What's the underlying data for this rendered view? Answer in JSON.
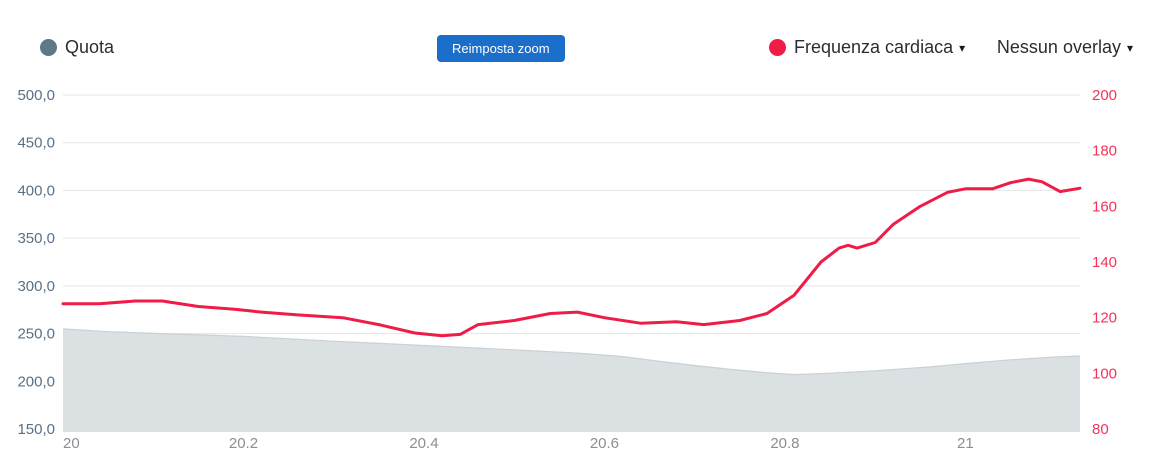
{
  "header": {
    "quota_legend": {
      "label": "Quota",
      "dot_color": "#5f7887"
    },
    "reset_zoom_button": {
      "label": "Reimposta zoom",
      "bg": "#1b6ec9",
      "text_color": "#ffffff"
    },
    "hr_dropdown": {
      "label": "Frequenza cardiaca",
      "dot_color": "#ee1c46",
      "arrow": "▾"
    },
    "overlay_dropdown": {
      "label": "Nessun overlay",
      "arrow": "▾"
    }
  },
  "chart_data": {
    "type": "area",
    "title": "",
    "x_axis": {
      "tick_labels": [
        "20",
        "20.2",
        "20.4",
        "20.6",
        "20.8",
        "21"
      ],
      "tick_values": [
        20,
        20.2,
        20.4,
        20.6,
        20.8,
        21
      ],
      "range": [
        20,
        21.127
      ],
      "color": "#8a8f94"
    },
    "left_axis": {
      "name": "Quota",
      "tick_labels": [
        "500,0",
        "450,0",
        "400,0",
        "350,0",
        "300,0",
        "250,0",
        "200,0",
        "150,0"
      ],
      "tick_values": [
        500,
        450,
        400,
        350,
        300,
        250,
        200,
        150
      ],
      "range": [
        150,
        500
      ],
      "color": "#5a7084"
    },
    "right_axis": {
      "name": "Frequenza cardiaca",
      "tick_labels": [
        "200",
        "180",
        "160",
        "140",
        "120",
        "100",
        "80"
      ],
      "tick_values": [
        200,
        180,
        160,
        140,
        120,
        100,
        80
      ],
      "range": [
        80,
        200
      ],
      "color": "#f4335a"
    },
    "grid": {
      "color": "#e3e4e6",
      "on": true
    },
    "series": [
      {
        "name": "Quota",
        "type": "area",
        "axis": "left",
        "fill": "#dbe0e3",
        "stroke": "#c9d1d6",
        "points": [
          [
            20.0,
            255
          ],
          [
            20.05,
            252
          ],
          [
            20.11,
            250
          ],
          [
            20.2,
            247
          ],
          [
            20.3,
            242
          ],
          [
            20.4,
            237.5
          ],
          [
            20.5,
            233
          ],
          [
            20.57,
            229.5
          ],
          [
            20.62,
            226
          ],
          [
            20.66,
            221
          ],
          [
            20.7,
            216.5
          ],
          [
            20.74,
            212.5
          ],
          [
            20.78,
            209
          ],
          [
            20.81,
            207
          ],
          [
            20.85,
            208.5
          ],
          [
            20.9,
            211
          ],
          [
            20.96,
            215
          ],
          [
            21.0,
            218.5
          ],
          [
            21.05,
            222.5
          ],
          [
            21.1,
            225.5
          ],
          [
            21.127,
            226.5
          ]
        ]
      },
      {
        "name": "Frequenza cardiaca",
        "type": "line",
        "axis": "right",
        "stroke": "#ee1c46",
        "points": [
          [
            20.0,
            125
          ],
          [
            20.04,
            125
          ],
          [
            20.08,
            126
          ],
          [
            20.11,
            126
          ],
          [
            20.15,
            124
          ],
          [
            20.19,
            123
          ],
          [
            20.22,
            122
          ],
          [
            20.26,
            121
          ],
          [
            20.31,
            120
          ],
          [
            20.35,
            117.5
          ],
          [
            20.39,
            114.5
          ],
          [
            20.42,
            113.5
          ],
          [
            20.44,
            114
          ],
          [
            20.46,
            117.5
          ],
          [
            20.5,
            119
          ],
          [
            20.54,
            121.5
          ],
          [
            20.57,
            122
          ],
          [
            20.6,
            120
          ],
          [
            20.64,
            118
          ],
          [
            20.68,
            118.5
          ],
          [
            20.71,
            117.5
          ],
          [
            20.75,
            119
          ],
          [
            20.78,
            121.5
          ],
          [
            20.81,
            128
          ],
          [
            20.84,
            140
          ],
          [
            20.86,
            145
          ],
          [
            20.87,
            146
          ],
          [
            20.88,
            145
          ],
          [
            20.9,
            147
          ],
          [
            20.92,
            153.5
          ],
          [
            20.95,
            160
          ],
          [
            20.98,
            165
          ],
          [
            21.0,
            166.3
          ],
          [
            21.03,
            166.3
          ],
          [
            21.05,
            168.5
          ],
          [
            21.07,
            169.8
          ],
          [
            21.085,
            168.8
          ],
          [
            21.105,
            165.3
          ],
          [
            21.127,
            166.5
          ]
        ]
      }
    ]
  }
}
